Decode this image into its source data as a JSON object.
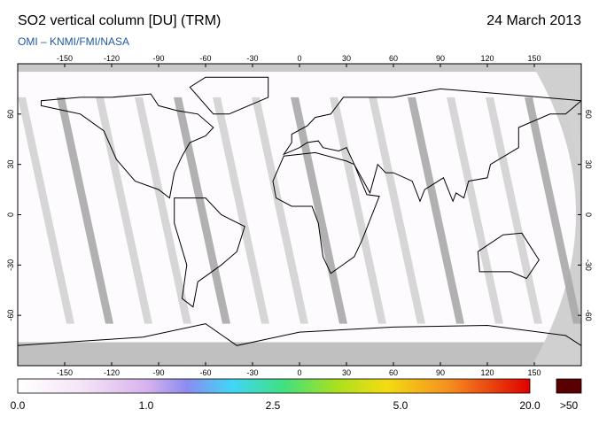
{
  "header": {
    "title": "SO2 vertical column [DU] (TRM)",
    "date": "24 March 2013",
    "credit": "OMI  –  KNMI/FMI/NASA"
  },
  "map": {
    "lon_ticks": [
      -150,
      -120,
      -90,
      -60,
      -30,
      0,
      30,
      60,
      90,
      120,
      150
    ],
    "lat_ticks": [
      60,
      30,
      0,
      -30,
      -60
    ]
  },
  "colorbar": {
    "labels": [
      "0.0",
      "1.0",
      "2.5",
      "5.0",
      "20.0",
      ">50"
    ]
  }
}
